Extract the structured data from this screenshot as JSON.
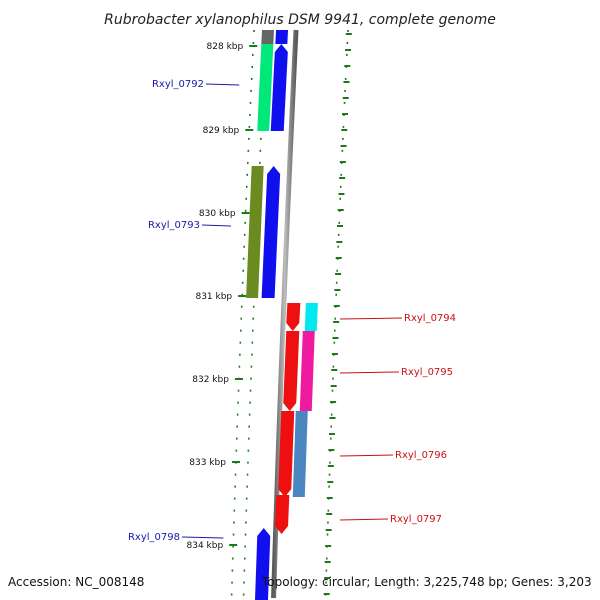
{
  "title": "Rubrobacter xylanophilus DSM 9941, complete genome",
  "footer": {
    "accession": "Accession: NC_008148",
    "summary": "Topology: circular; Length: 3,225,748 bp; Genes: 3,203"
  },
  "ticks": [
    {
      "label": "828 kbp"
    },
    {
      "label": "829 kbp"
    },
    {
      "label": "830 kbp"
    },
    {
      "label": "831 kbp"
    },
    {
      "label": "832 kbp"
    },
    {
      "label": "833 kbp"
    },
    {
      "label": "834 kbp"
    }
  ],
  "genes": [
    {
      "label": "Rxyl_0792",
      "strand": "forward",
      "cog_color": "#00e87a"
    },
    {
      "label": "Rxyl_0793",
      "strand": "forward",
      "cog_color": "#6b8a1f"
    },
    {
      "label": "Rxyl_0794",
      "strand": "reverse",
      "cog_color": "#00e8f0"
    },
    {
      "label": "Rxyl_0795",
      "strand": "reverse",
      "cog_color": "#f01aa0"
    },
    {
      "label": "Rxyl_0796",
      "strand": "reverse",
      "cog_color": "#4a86c0"
    },
    {
      "label": "Rxyl_0797",
      "strand": "reverse",
      "cog_color": null
    },
    {
      "label": "Rxyl_0798",
      "strand": "forward",
      "cog_color": null
    }
  ],
  "colors": {
    "forward_cds": "#1010ee",
    "reverse_cds": "#ee1010",
    "backbone": "#888888",
    "tick": "#1a7a1a",
    "label_forward": "#1a1aa6",
    "label_reverse": "#cc1111"
  }
}
